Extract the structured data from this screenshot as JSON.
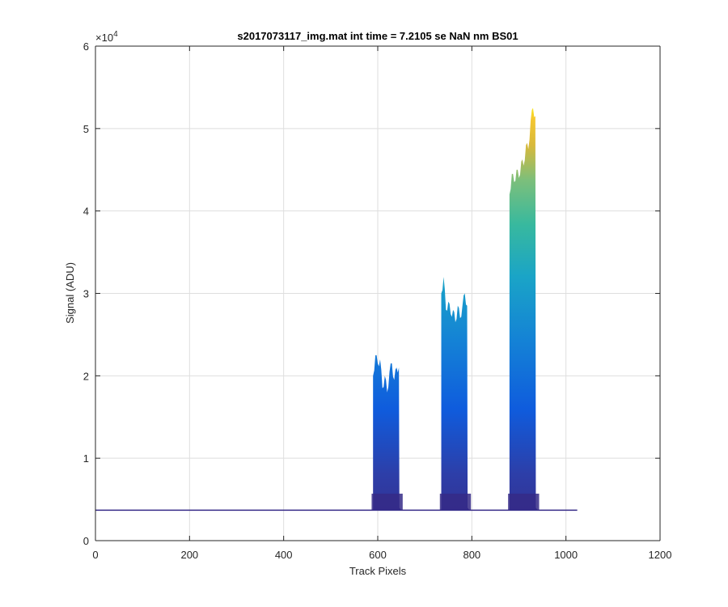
{
  "chart_data": {
    "type": "area",
    "title": "s2017073117_img.mat int time = 7.2105 se  NaN nm BS01",
    "xlabel": "Track Pixels",
    "ylabel": "Signal (ADU)",
    "xlim": [
      0,
      1200
    ],
    "ylim": [
      0,
      60000
    ],
    "y_exponent_label": "×10",
    "y_exponent_power": "4",
    "xticks": [
      0,
      200,
      400,
      600,
      800,
      1000,
      1200
    ],
    "xtick_labels": [
      "0",
      "200",
      "400",
      "600",
      "800",
      "1000",
      "1200"
    ],
    "yticks": [
      0,
      10000,
      20000,
      30000,
      40000,
      50000,
      60000
    ],
    "ytick_labels": [
      "0",
      "1",
      "2",
      "3",
      "4",
      "5",
      "6"
    ],
    "grid": true,
    "colormap": "parula",
    "baseline_signal": 3700,
    "x_extent": [
      0,
      1024
    ],
    "peaks": [
      {
        "x": [
          590,
          595,
          600,
          605,
          610,
          615,
          620,
          625,
          630,
          635,
          640,
          645,
          650
        ],
        "y": [
          20000,
          22500,
          21500,
          22000,
          18500,
          20000,
          18000,
          20500,
          21500,
          19500,
          21000,
          21000,
          4000
        ]
      },
      {
        "x": [
          735,
          740,
          745,
          750,
          755,
          760,
          765,
          770,
          775,
          780,
          785,
          790,
          795
        ],
        "y": [
          30000,
          32000,
          28000,
          29000,
          27500,
          28000,
          26500,
          28500,
          27000,
          28500,
          30000,
          28500,
          4000
        ]
      },
      {
        "x": [
          880,
          885,
          890,
          895,
          900,
          905,
          910,
          915,
          920,
          925,
          930,
          935,
          940
        ],
        "y": [
          42000,
          44500,
          43500,
          45000,
          44000,
          46000,
          45500,
          48000,
          47500,
          51000,
          52500,
          51500,
          4000
        ]
      }
    ],
    "colors": {
      "low": "#352a87",
      "mid_low": "#0f5cdd",
      "mid": "#1aa4c7",
      "mid_high": "#5bbf8e",
      "high": "#d8b93b",
      "top": "#f9fb0e",
      "grid": "#dedede",
      "axis": "#262626"
    }
  }
}
